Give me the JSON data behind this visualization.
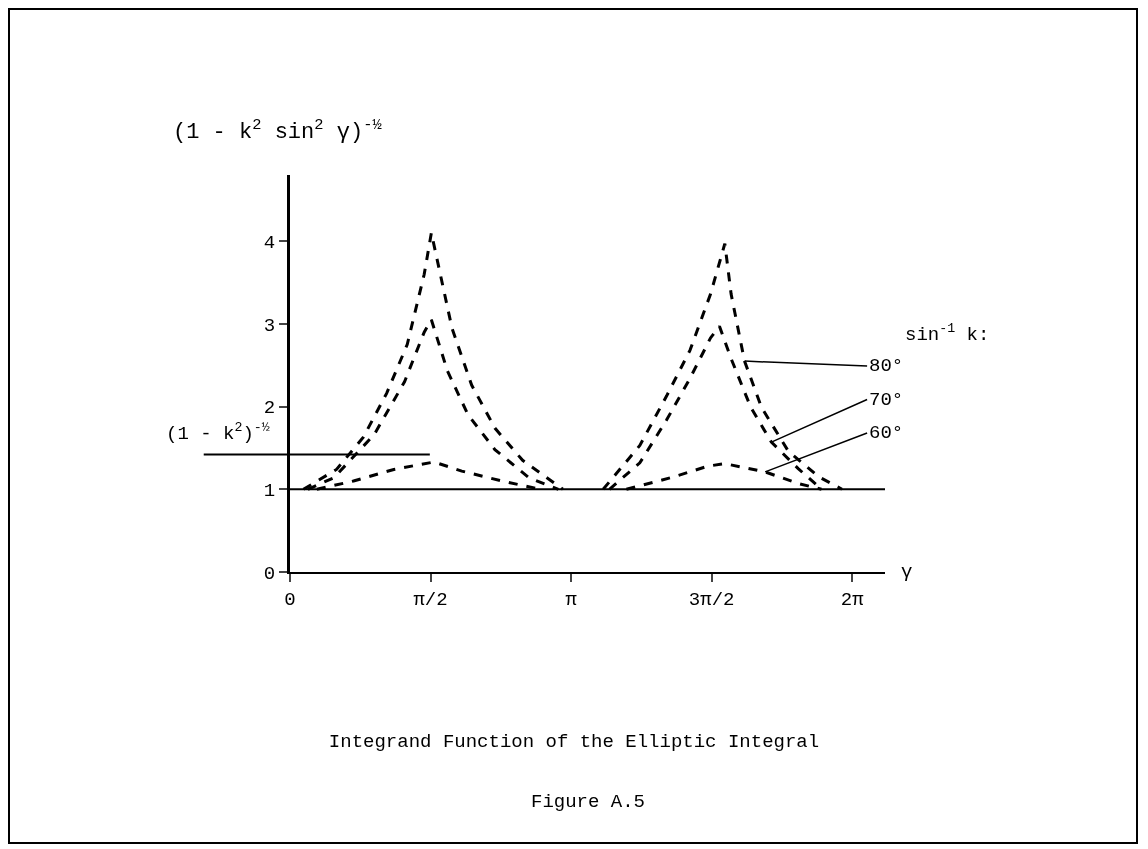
{
  "chart_data": {
    "type": "line",
    "title": "Integrand Function of the Elliptic Integral",
    "xlabel": "γ",
    "ylabel": "(1 - k$^{2}$ sin$^{2}$ γ)$^{-½}$",
    "legend_title": "sin$^{-1}$ k:",
    "xlim": [
      0,
      6.65
    ],
    "ylim": [
      0,
      4.8
    ],
    "xticks": [
      0,
      {
        "value": 1.5708,
        "label": "π/2"
      },
      {
        "value": 3.1416,
        "label": "π"
      },
      {
        "value": 4.7124,
        "label": "3π/2"
      },
      {
        "value": 6.2832,
        "label": "2π"
      }
    ],
    "yticks": [
      0,
      1,
      2,
      3,
      4
    ],
    "grid": false,
    "line_style": "dashed",
    "ref_lines": [
      {
        "axis": "y",
        "value": 1
      },
      {
        "axis": "y",
        "value": 1.42,
        "label": "(1 - k$^{2}$)$^{-½}$"
      }
    ],
    "annotations": [
      "Figure A.5"
    ],
    "series": [
      {
        "name": "80°",
        "color": "#000000",
        "x": [
          0.15,
          0.52,
          0.82,
          1.08,
          1.31,
          1.5,
          1.58,
          1.81,
          2.03,
          2.29,
          2.6,
          3.05,
          3.14,
          3.5,
          3.91,
          4.21,
          4.47,
          4.7,
          4.86,
          4.93,
          5.08,
          5.27,
          5.57,
          5.91,
          6.17
        ],
        "values": [
          1.0,
          1.24,
          1.63,
          2.16,
          2.75,
          3.6,
          4.1,
          2.95,
          2.26,
          1.74,
          1.35,
          1.0,
          null,
          1.0,
          1.53,
          2.13,
          2.68,
          3.36,
          3.97,
          3.36,
          2.55,
          1.99,
          1.46,
          1.15,
          1.0
        ]
      },
      {
        "name": "70°",
        "color": "#000000",
        "x": [
          0.2,
          0.49,
          0.94,
          1.28,
          1.5,
          1.58,
          1.76,
          1.99,
          2.29,
          2.67,
          3.0,
          3.14,
          3.57,
          3.91,
          4.21,
          4.47,
          4.7,
          4.8,
          4.93,
          5.15,
          5.38,
          5.68,
          5.94
        ],
        "values": [
          1.0,
          1.14,
          1.66,
          2.3,
          2.9,
          3.05,
          2.43,
          1.9,
          1.48,
          1.14,
          1.0,
          null,
          1.0,
          1.32,
          1.84,
          2.34,
          2.83,
          2.97,
          2.58,
          1.99,
          1.57,
          1.25,
          1.0
        ]
      },
      {
        "name": "60°",
        "color": "#000000",
        "x": [
          0.3,
          0.71,
          1.16,
          1.61,
          1.92,
          2.37,
          2.8,
          3.14,
          3.76,
          4.29,
          4.67,
          4.86,
          5.31,
          5.68,
          5.94
        ],
        "values": [
          1.0,
          1.1,
          1.24,
          1.33,
          1.22,
          1.1,
          1.0,
          null,
          1.0,
          1.15,
          1.28,
          1.31,
          1.21,
          1.07,
          1.0
        ]
      }
    ]
  }
}
